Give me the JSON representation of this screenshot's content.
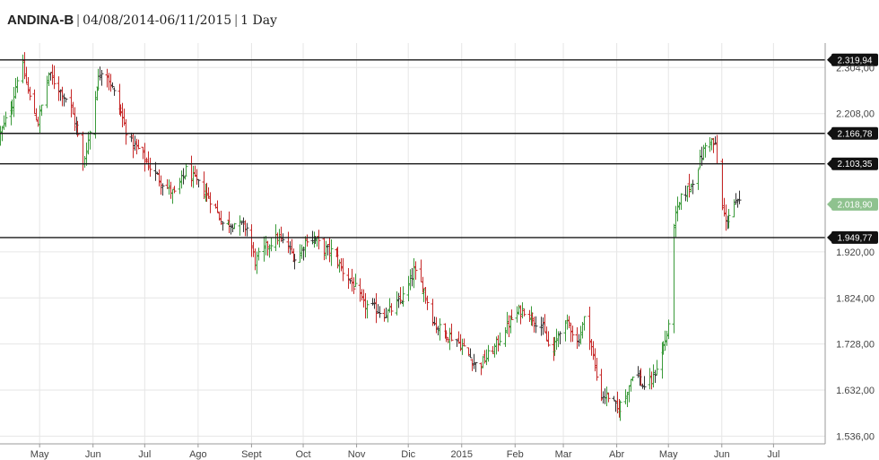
{
  "header": {
    "ticker": "ANDINA-B",
    "date_range": "04/08/2014-06/11/2015",
    "interval": "1 Day"
  },
  "colors": {
    "up": "#3a9a3a",
    "down": "#c62828",
    "neutral": "#333333",
    "level_line": "#1a1a1a",
    "last_price_tag": "#8fc28f",
    "level_tag": "#111111",
    "grid": "#e6e6e6"
  },
  "chart_data": {
    "type": "ohlc",
    "title": "ANDINA-B",
    "x_range": [
      "2014-04-08",
      "2015-07-31"
    ],
    "ylim": [
      1520,
      2355
    ],
    "grid": true,
    "x_ticks": [
      {
        "date": "2014-05-01",
        "label": "May"
      },
      {
        "date": "2014-06-01",
        "label": "Jun"
      },
      {
        "date": "2014-07-01",
        "label": "Jul"
      },
      {
        "date": "2014-08-01",
        "label": "Ago"
      },
      {
        "date": "2014-09-01",
        "label": "Sept"
      },
      {
        "date": "2014-10-01",
        "label": "Oct"
      },
      {
        "date": "2014-11-01",
        "label": "Nov"
      },
      {
        "date": "2014-12-01",
        "label": "Dic"
      },
      {
        "date": "2015-01-01",
        "label": "2015"
      },
      {
        "date": "2015-02-01",
        "label": "Feb"
      },
      {
        "date": "2015-03-01",
        "label": "Mar"
      },
      {
        "date": "2015-04-01",
        "label": "Abr"
      },
      {
        "date": "2015-05-01",
        "label": "May"
      },
      {
        "date": "2015-06-01",
        "label": "Jun"
      },
      {
        "date": "2015-07-01",
        "label": "Jul"
      }
    ],
    "y_ticks": [
      {
        "value": 1536,
        "label": "1.536,00"
      },
      {
        "value": 1632,
        "label": "1.632,00"
      },
      {
        "value": 1728,
        "label": "1.728,00"
      },
      {
        "value": 1824,
        "label": "1.824,00"
      },
      {
        "value": 1920,
        "label": "1.920,00"
      },
      {
        "value": 2208,
        "label": "2.208,00"
      },
      {
        "value": 2304,
        "label": "2.304,00"
      }
    ],
    "levels": [
      {
        "value": 2319.94,
        "label": "2.319,94"
      },
      {
        "value": 2166.78,
        "label": "2.166,78"
      },
      {
        "value": 2103.35,
        "label": "2.103,35"
      },
      {
        "value": 1949.77,
        "label": "1.949,77"
      }
    ],
    "last_price": {
      "value": 2018.9,
      "label": "2.018,90"
    },
    "price_path": [
      [
        "2014-04-08",
        2165
      ],
      [
        "2014-04-15",
        2230
      ],
      [
        "2014-04-20",
        2320
      ],
      [
        "2014-04-25",
        2240
      ],
      [
        "2014-04-30",
        2190
      ],
      [
        "2014-05-06",
        2290
      ],
      [
        "2014-05-12",
        2260
      ],
      [
        "2014-05-18",
        2230
      ],
      [
        "2014-05-22",
        2180
      ],
      [
        "2014-05-26",
        2100
      ],
      [
        "2014-05-30",
        2170
      ],
      [
        "2014-06-03",
        2270
      ],
      [
        "2014-06-07",
        2310
      ],
      [
        "2014-06-12",
        2260
      ],
      [
        "2014-06-17",
        2210
      ],
      [
        "2014-06-22",
        2150
      ],
      [
        "2014-06-28",
        2130
      ],
      [
        "2014-07-05",
        2090
      ],
      [
        "2014-07-12",
        2060
      ],
      [
        "2014-07-18",
        2040
      ],
      [
        "2014-07-25",
        2090
      ],
      [
        "2014-08-01",
        2060
      ],
      [
        "2014-08-08",
        2030
      ],
      [
        "2014-08-15",
        1980
      ],
      [
        "2014-08-22",
        1980
      ],
      [
        "2014-08-29",
        1970
      ],
      [
        "2014-09-03",
        1900
      ],
      [
        "2014-09-10",
        1935
      ],
      [
        "2014-09-16",
        1950
      ],
      [
        "2014-09-22",
        1930
      ],
      [
        "2014-09-27",
        1900
      ],
      [
        "2014-10-03",
        1950
      ],
      [
        "2014-10-08",
        1945
      ],
      [
        "2014-10-13",
        1925
      ],
      [
        "2014-10-18",
        1920
      ],
      [
        "2014-10-24",
        1880
      ],
      [
        "2014-10-30",
        1850
      ],
      [
        "2014-11-05",
        1810
      ],
      [
        "2014-11-12",
        1800
      ],
      [
        "2014-11-18",
        1790
      ],
      [
        "2014-11-24",
        1810
      ],
      [
        "2014-11-29",
        1830
      ],
      [
        "2014-12-04",
        1880
      ],
      [
        "2014-12-10",
        1840
      ],
      [
        "2014-12-16",
        1770
      ],
      [
        "2014-12-22",
        1750
      ],
      [
        "2014-12-28",
        1740
      ],
      [
        "2015-01-04",
        1710
      ],
      [
        "2015-01-10",
        1680
      ],
      [
        "2015-01-15",
        1700
      ],
      [
        "2015-01-20",
        1720
      ],
      [
        "2015-01-26",
        1760
      ],
      [
        "2015-02-01",
        1790
      ],
      [
        "2015-02-06",
        1800
      ],
      [
        "2015-02-12",
        1780
      ],
      [
        "2015-02-17",
        1760
      ],
      [
        "2015-02-22",
        1700
      ],
      [
        "2015-02-27",
        1760
      ],
      [
        "2015-03-04",
        1770
      ],
      [
        "2015-03-09",
        1730
      ],
      [
        "2015-03-14",
        1790
      ],
      [
        "2015-03-18",
        1700
      ],
      [
        "2015-03-22",
        1620
      ],
      [
        "2015-03-27",
        1620
      ],
      [
        "2015-04-01",
        1590
      ],
      [
        "2015-04-06",
        1620
      ],
      [
        "2015-04-11",
        1680
      ],
      [
        "2015-04-16",
        1640
      ],
      [
        "2015-04-21",
        1650
      ],
      [
        "2015-04-26",
        1700
      ],
      [
        "2015-05-01",
        1760
      ],
      [
        "2015-05-03",
        1970
      ],
      [
        "2015-05-08",
        2030
      ],
      [
        "2015-05-14",
        2060
      ],
      [
        "2015-05-19",
        2110
      ],
      [
        "2015-05-24",
        2160
      ],
      [
        "2015-05-28",
        2140
      ],
      [
        "2015-05-31",
        2030
      ],
      [
        "2015-06-03",
        1980
      ],
      [
        "2015-06-07",
        2020
      ],
      [
        "2015-06-11",
        2018.9
      ]
    ]
  }
}
